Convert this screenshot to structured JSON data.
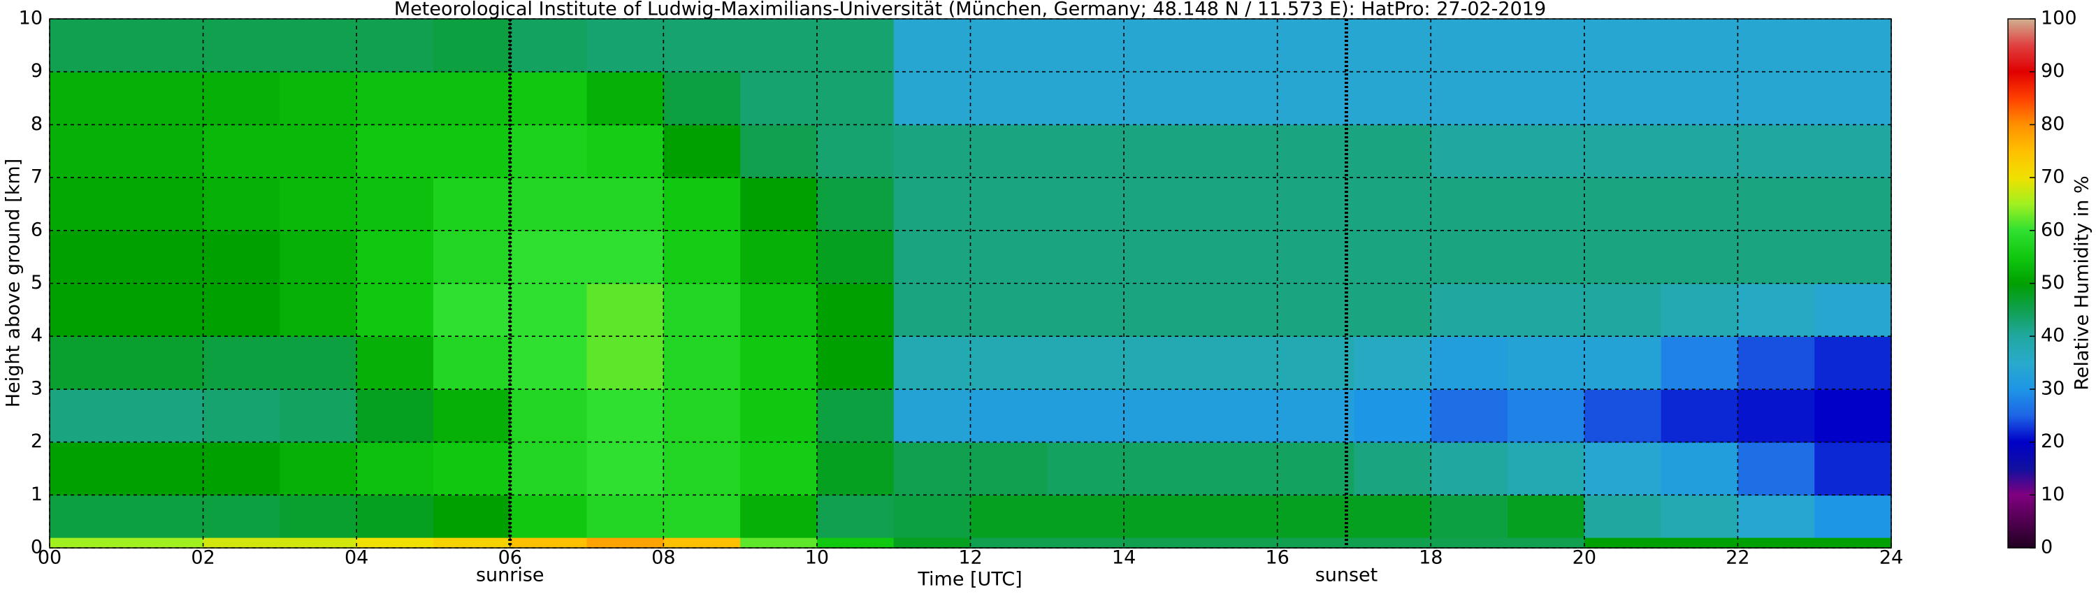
{
  "chart_data": {
    "type": "heatmap",
    "title": "Meteorological Institute of Ludwig-Maximilians-Universität (München, Germany; 48.148 N / 11.573 E):    HatPro: 27-02-2019",
    "xlabel": "Time [UTC]",
    "ylabel": "Height above ground [km]",
    "xlim": [
      0,
      24
    ],
    "ylim": [
      0,
      10
    ],
    "xticks": [
      {
        "value": 0,
        "label": "00"
      },
      {
        "value": 2,
        "label": "02"
      },
      {
        "value": 4,
        "label": "04"
      },
      {
        "value": 6,
        "label": "06"
      },
      {
        "value": 8,
        "label": "08"
      },
      {
        "value": 10,
        "label": "10"
      },
      {
        "value": 12,
        "label": "12"
      },
      {
        "value": 14,
        "label": "14"
      },
      {
        "value": 16,
        "label": "16"
      },
      {
        "value": 18,
        "label": "18"
      },
      {
        "value": 20,
        "label": "20"
      },
      {
        "value": 22,
        "label": "22"
      },
      {
        "value": 24,
        "label": "24"
      }
    ],
    "yticks": [
      0,
      1,
      2,
      3,
      4,
      5,
      6,
      7,
      8,
      9,
      10
    ],
    "grid": true,
    "x_bins": [
      0,
      1,
      2,
      3,
      4,
      5,
      6,
      7,
      8,
      9,
      10,
      11,
      12,
      13,
      14,
      15,
      16,
      17,
      18,
      19,
      20,
      21,
      22,
      23,
      24
    ],
    "y_bins": [
      0,
      0.2,
      1,
      2,
      3,
      4,
      5,
      6,
      7,
      8,
      9,
      10
    ],
    "values": [
      [
        65,
        46,
        50,
        42,
        47,
        50,
        50,
        51,
        52,
        52,
        45
      ],
      [
        65,
        46,
        50,
        42,
        47,
        50,
        50,
        51,
        52,
        52,
        45
      ],
      [
        68,
        46,
        50,
        43,
        46,
        50,
        50,
        52,
        53,
        52,
        45
      ],
      [
        68,
        47,
        52,
        44,
        46,
        52,
        52,
        53,
        53,
        53,
        45
      ],
      [
        70,
        48,
        54,
        48,
        52,
        55,
        55,
        54,
        55,
        54,
        45
      ],
      [
        72,
        50,
        55,
        52,
        58,
        60,
        58,
        57,
        55,
        54,
        46
      ],
      [
        75,
        55,
        58,
        58,
        60,
        60,
        60,
        58,
        57,
        55,
        44
      ],
      [
        78,
        58,
        60,
        60,
        62,
        62,
        60,
        58,
        56,
        52,
        43
      ],
      [
        75,
        58,
        58,
        58,
        58,
        58,
        56,
        55,
        50,
        46,
        43
      ],
      [
        62,
        52,
        56,
        55,
        55,
        54,
        52,
        50,
        45,
        43,
        43
      ],
      [
        55,
        45,
        48,
        46,
        50,
        50,
        48,
        46,
        43,
        43,
        43
      ],
      [
        48,
        46,
        45,
        33,
        38,
        42,
        42,
        42,
        42,
        34,
        34
      ],
      [
        45,
        48,
        45,
        32,
        38,
        42,
        42,
        42,
        42,
        34,
        34
      ],
      [
        45,
        48,
        44,
        32,
        38,
        42,
        42,
        42,
        42,
        34,
        34
      ],
      [
        45,
        48,
        44,
        32,
        38,
        42,
        42,
        42,
        42,
        34,
        34
      ],
      [
        45,
        48,
        44,
        32,
        38,
        42,
        42,
        42,
        42,
        34,
        34
      ],
      [
        45,
        48,
        44,
        32,
        38,
        42,
        42,
        42,
        42,
        34,
        34
      ],
      [
        45,
        48,
        42,
        30,
        36,
        42,
        42,
        42,
        42,
        34,
        34
      ],
      [
        45,
        46,
        40,
        26,
        32,
        40,
        42,
        42,
        40,
        34,
        34
      ],
      [
        45,
        48,
        38,
        28,
        33,
        40,
        42,
        42,
        40,
        34,
        34
      ],
      [
        50,
        40,
        34,
        24,
        33,
        40,
        42,
        42,
        40,
        34,
        34
      ],
      [
        50,
        38,
        32,
        22,
        28,
        38,
        42,
        42,
        40,
        34,
        34
      ],
      [
        50,
        34,
        26,
        21,
        24,
        36,
        42,
        42,
        40,
        34,
        34
      ],
      [
        50,
        30,
        22,
        20,
        22,
        34,
        42,
        42,
        40,
        34,
        34
      ]
    ],
    "annotations": [
      {
        "text": "sunrise",
        "x": 6
      },
      {
        "text": "sunset",
        "x": 16.9
      }
    ],
    "colorbar": {
      "label": "Relative Humidity in %",
      "lim": [
        0,
        100
      ],
      "ticks": [
        0,
        10,
        20,
        30,
        40,
        50,
        60,
        70,
        80,
        90,
        100
      ],
      "stops": [
        {
          "value": 0,
          "color": "#200020"
        },
        {
          "value": 10,
          "color": "#800080"
        },
        {
          "value": 15,
          "color": "#1010a0"
        },
        {
          "value": 20,
          "color": "#0000c8"
        },
        {
          "value": 25,
          "color": "#1e64e6"
        },
        {
          "value": 30,
          "color": "#1e96e6"
        },
        {
          "value": 35,
          "color": "#28aacc"
        },
        {
          "value": 40,
          "color": "#20a8a0"
        },
        {
          "value": 45,
          "color": "#10a050"
        },
        {
          "value": 50,
          "color": "#00a000"
        },
        {
          "value": 55,
          "color": "#10c810"
        },
        {
          "value": 60,
          "color": "#30e030"
        },
        {
          "value": 65,
          "color": "#a0f020"
        },
        {
          "value": 70,
          "color": "#f0e000"
        },
        {
          "value": 75,
          "color": "#ffc000"
        },
        {
          "value": 80,
          "color": "#ff9000"
        },
        {
          "value": 85,
          "color": "#ff4000"
        },
        {
          "value": 90,
          "color": "#e00000"
        },
        {
          "value": 95,
          "color": "#e04040"
        },
        {
          "value": 100,
          "color": "#d0b090"
        }
      ]
    }
  }
}
